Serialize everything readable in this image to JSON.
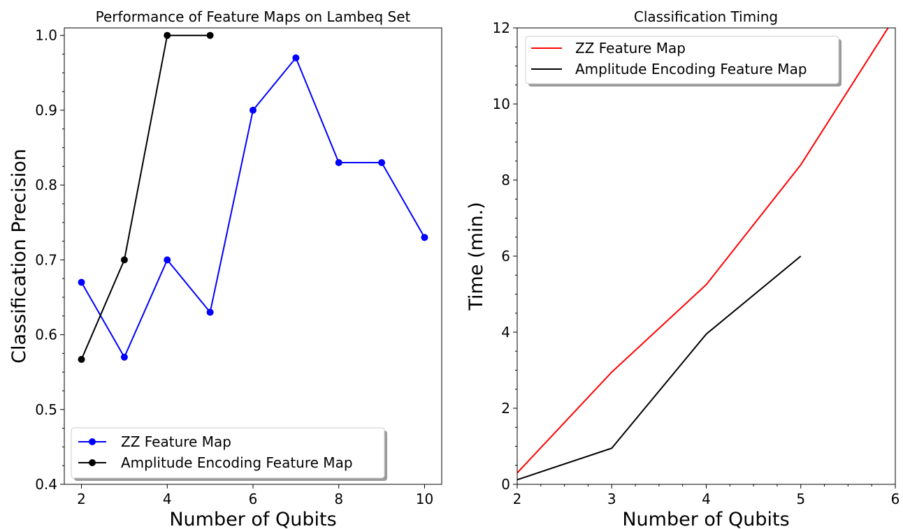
{
  "chart_data": [
    {
      "type": "line",
      "title": "Performance of Feature Maps on Lambeq Set",
      "xlabel": "Number of Qubits",
      "ylabel": "Classification Precision",
      "xlim": [
        1.6,
        10.4
      ],
      "ylim": [
        0.4,
        1.01
      ],
      "xticks": [
        2,
        4,
        6,
        8,
        10
      ],
      "yticks": [
        0.4,
        0.5,
        0.6,
        0.7,
        0.8,
        0.9,
        1.0
      ],
      "ytick_labels": [
        "0.4",
        "0.5",
        "0.6",
        "0.7",
        "0.8",
        "0.9",
        "1.0"
      ],
      "markers": true,
      "legend_position": "lower-left",
      "grid": false,
      "series": [
        {
          "name": "ZZ Feature Map",
          "color": "#0000ff",
          "x": [
            2,
            3,
            4,
            5,
            6,
            7,
            8,
            9,
            10
          ],
          "y": [
            0.67,
            0.57,
            0.7,
            0.63,
            0.9,
            0.97,
            0.83,
            0.83,
            0.73
          ]
        },
        {
          "name": "Amplitude Encoding Feature Map",
          "color": "#000000",
          "x": [
            2,
            3,
            4,
            5
          ],
          "y": [
            0.567,
            0.7,
            1.0,
            1.0
          ]
        }
      ]
    },
    {
      "type": "line",
      "title": "Classification Timing",
      "xlabel": "Number of Qubits",
      "ylabel": "Time (min.)",
      "xlim": [
        2,
        6
      ],
      "ylim": [
        0,
        12
      ],
      "xticks": [
        2,
        3,
        4,
        5,
        6
      ],
      "yticks": [
        0,
        2,
        4,
        6,
        8,
        10,
        12
      ],
      "ytick_labels": [
        "0",
        "2",
        "4",
        "6",
        "8",
        "10",
        "12"
      ],
      "markers": false,
      "legend_position": "top-left",
      "grid": false,
      "series": [
        {
          "name": "ZZ Feature Map",
          "color": "#ff0000",
          "x": [
            2,
            3,
            4,
            5,
            6
          ],
          "y": [
            0.3,
            2.95,
            5.25,
            8.4,
            12.3
          ]
        },
        {
          "name": "Amplitude Encoding Feature Map",
          "color": "#000000",
          "x": [
            2,
            3,
            4,
            5
          ],
          "y": [
            0.12,
            0.95,
            3.95,
            6.0
          ]
        }
      ]
    }
  ]
}
